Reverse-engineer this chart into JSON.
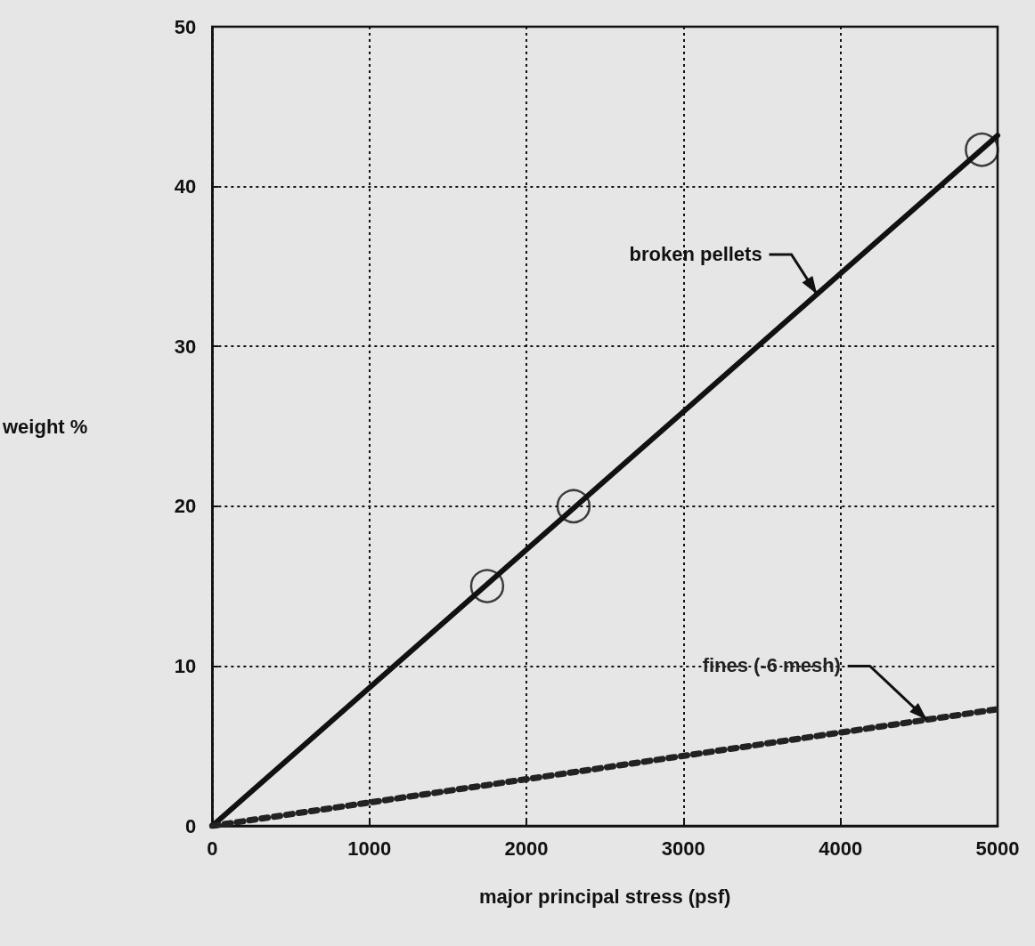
{
  "chart_data": {
    "type": "line",
    "xlabel": "major principal stress (psf)",
    "ylabel": "weight %",
    "xlim": [
      0,
      5000
    ],
    "xticks": [
      0,
      1000,
      2000,
      3000,
      4000,
      5000
    ],
    "ylim": [
      0,
      50
    ],
    "yticks": [
      0,
      10,
      20,
      30,
      40,
      50
    ],
    "grid": true,
    "legend": false,
    "series": [
      {
        "name": "broken pellets",
        "color": "#111111",
        "x": [
          0,
          5000
        ],
        "values": [
          0,
          43.2
        ],
        "marker": "none",
        "line_style": "solid"
      },
      {
        "type": "scatter",
        "color": "#111111",
        "x": [
          1750,
          2300,
          4900
        ],
        "values": [
          15,
          20,
          42.3
        ],
        "marker": "circle"
      },
      {
        "name": "fines (-6 mesh)",
        "color": "#222222",
        "x": [
          0,
          5000
        ],
        "values": [
          0,
          7.3
        ],
        "marker": "none",
        "line_style": "dotted"
      }
    ]
  }
}
